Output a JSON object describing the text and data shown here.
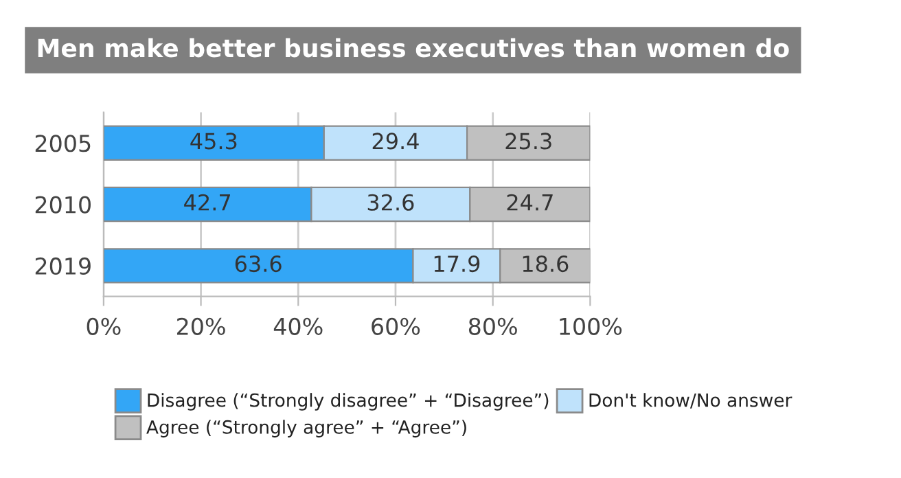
{
  "chart_data": {
    "type": "bar",
    "orientation": "horizontal",
    "stacked": true,
    "title": "Men make better business executives than women do",
    "categories": [
      "2005",
      "2010",
      "2019"
    ],
    "series": [
      {
        "name": "Disagree (“Strongly disagree” + “Disagree”)",
        "color": "#33a6f6",
        "values": [
          45.3,
          42.7,
          63.6
        ]
      },
      {
        "name": "Don't know/No answer",
        "color": "#bfe2fb",
        "values": [
          29.4,
          32.6,
          17.9
        ]
      },
      {
        "name": "Agree (“Strongly agree” + “Agree”)",
        "color": "#c0c0c0",
        "values": [
          25.3,
          24.7,
          18.6
        ]
      }
    ],
    "xlim": [
      0,
      100
    ],
    "xticks": [
      {
        "value": 0,
        "label": "0%"
      },
      {
        "value": 20,
        "label": "20%"
      },
      {
        "value": 40,
        "label": "40%"
      },
      {
        "value": 60,
        "label": "60%"
      },
      {
        "value": 80,
        "label": "80%"
      },
      {
        "value": 100,
        "label": "100%"
      }
    ],
    "grid": "x",
    "legend": "bottom",
    "data_labels": true
  }
}
